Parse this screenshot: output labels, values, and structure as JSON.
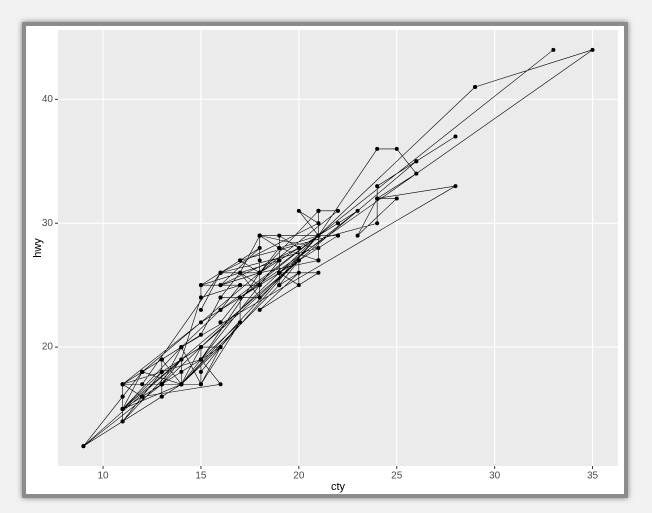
{
  "chart_data": {
    "type": "line",
    "markers": true,
    "x_label": "cty",
    "y_label": "hwy",
    "color": "#000000",
    "grid": true,
    "x": [
      18,
      21,
      20,
      21,
      16,
      18,
      18,
      18,
      16,
      20,
      19,
      15,
      17,
      17,
      15,
      15,
      17,
      16,
      14,
      11,
      14,
      13,
      12,
      16,
      15,
      16,
      15,
      15,
      14,
      11,
      11,
      14,
      19,
      22,
      18,
      18,
      17,
      18,
      17,
      16,
      16,
      17,
      17,
      16,
      17,
      15,
      11,
      15,
      15,
      14,
      13,
      11,
      14,
      14,
      13,
      12,
      11,
      11,
      13,
      13,
      11,
      12,
      13,
      12,
      12,
      13,
      9,
      13,
      11,
      13,
      9,
      11,
      11,
      12,
      11,
      11,
      12,
      14,
      13,
      13,
      13,
      14,
      14,
      13,
      13,
      13,
      11,
      13,
      12,
      16,
      15,
      15,
      15,
      18,
      18,
      17,
      16,
      15,
      14,
      28,
      24,
      25,
      23,
      24,
      26,
      25,
      24,
      21,
      18,
      21,
      21,
      21,
      18,
      18,
      19,
      19,
      19,
      20,
      20,
      17,
      16,
      17,
      17,
      15,
      15,
      14,
      9,
      14,
      13,
      11,
      11,
      12,
      12,
      11,
      11,
      11,
      12,
      14,
      13,
      13,
      13,
      21,
      19,
      23,
      19,
      19,
      18,
      18,
      19,
      19,
      14,
      15,
      14,
      12,
      18,
      16,
      17,
      18,
      16,
      18,
      18,
      20,
      19,
      20,
      18,
      21,
      19,
      19,
      19,
      20,
      20,
      19,
      20,
      15,
      16,
      15,
      15,
      16,
      14,
      21,
      21,
      21,
      21,
      18,
      18,
      19,
      21,
      21,
      21,
      22,
      18,
      18,
      17,
      24,
      24,
      26,
      28,
      26,
      11,
      13,
      15,
      16,
      17,
      15,
      15,
      15,
      16,
      21,
      19,
      21,
      22,
      17,
      33,
      21,
      19,
      22,
      21,
      21,
      21,
      16,
      17,
      35,
      29,
      21,
      29,
      21,
      21,
      18,
      19,
      21,
      18,
      21,
      16,
      18
    ],
    "values": [
      29,
      29,
      31,
      30,
      26,
      26,
      27,
      26,
      25,
      28,
      27,
      25,
      25,
      25,
      25,
      24,
      25,
      23,
      20,
      15,
      20,
      17,
      17,
      26,
      23,
      26,
      25,
      24,
      19,
      14,
      15,
      17,
      27,
      30,
      26,
      29,
      26,
      24,
      24,
      22,
      22,
      24,
      24,
      22,
      24,
      22,
      17,
      19,
      19,
      18,
      17,
      15,
      17,
      19,
      17,
      16,
      15,
      17,
      17,
      17,
      15,
      16,
      17,
      16,
      16,
      17,
      12,
      17,
      15,
      17,
      12,
      16,
      15,
      16,
      17,
      17,
      18,
      17,
      19,
      19,
      17,
      17,
      17,
      16,
      16,
      17,
      15,
      17,
      16,
      17,
      19,
      20,
      19,
      26,
      25,
      26,
      24,
      21,
      20,
      33,
      32,
      32,
      29,
      32,
      34,
      36,
      36,
      29,
      26,
      27,
      30,
      31,
      26,
      26,
      28,
      26,
      29,
      28,
      27,
      24,
      24,
      24,
      22,
      19,
      20,
      17,
      12,
      19,
      18,
      14,
      15,
      18,
      18,
      15,
      17,
      16,
      18,
      17,
      19,
      19,
      17,
      29,
      27,
      31,
      26,
      26,
      25,
      25,
      26,
      25,
      17,
      17,
      20,
      18,
      26,
      26,
      27,
      28,
      25,
      25,
      24,
      27,
      25,
      26,
      23,
      26,
      26,
      26,
      26,
      25,
      27,
      25,
      27,
      20,
      20,
      19,
      17,
      20,
      17,
      29,
      27,
      31,
      31,
      26,
      26,
      28,
      27,
      29,
      31,
      31,
      26,
      26,
      27,
      30,
      33,
      35,
      37,
      35,
      15,
      18,
      20,
      20,
      22,
      17,
      19,
      18,
      20,
      29,
      26,
      29,
      29,
      24,
      44,
      29,
      26,
      29,
      29,
      29,
      29,
      23,
      24,
      44,
      41,
      29,
      41,
      29,
      29,
      29,
      28,
      29,
      29,
      28,
      26,
      26
    ],
    "xlim": [
      7.7,
      36.3
    ],
    "xticks": [
      10,
      15,
      20,
      25,
      30,
      35
    ],
    "ylim": [
      10.4,
      45.6
    ],
    "yticks": [
      20,
      30,
      40
    ]
  }
}
